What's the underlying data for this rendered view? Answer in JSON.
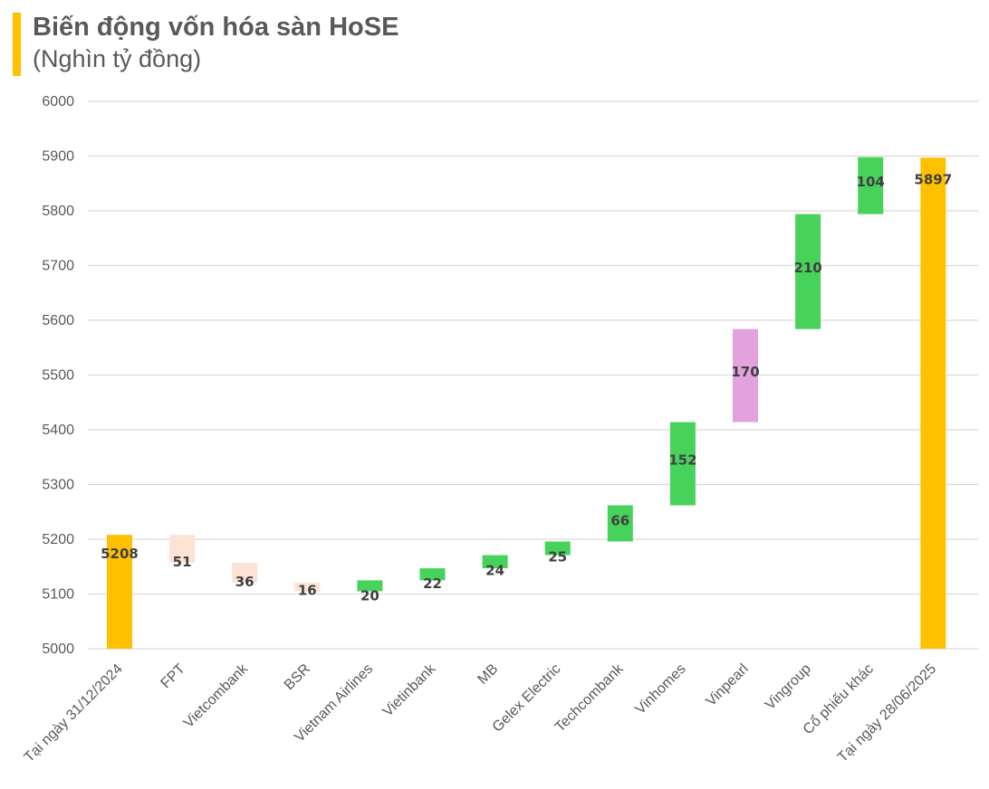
{
  "header": {
    "title": "Biến động vốn hóa sàn HoSE",
    "subtitle": "(Nghìn tỷ đồng)"
  },
  "colors": {
    "accent": "#FFC000",
    "total": "#FFC000",
    "increase": "#47D35B",
    "decrease": "#FCE3D6",
    "highlight": "#E3A2DD",
    "grid": "#D9D9D9",
    "text": "#595959"
  },
  "chart_data": {
    "type": "waterfall",
    "title": "Biến động vốn hóa sàn HoSE",
    "ylabel": "(Nghìn tỷ đồng)",
    "ylim": [
      5000,
      6000
    ],
    "yticks": [
      5000,
      5100,
      5200,
      5300,
      5400,
      5500,
      5600,
      5700,
      5800,
      5900,
      6000
    ],
    "grid": true,
    "categories": [
      "Tại ngày 31/12/2024",
      "FPT",
      "Vietcombank",
      "BSR",
      "Vietnam Airlines",
      "Vietinbank",
      "MB",
      "Gelex Electric",
      "Techcombank",
      "Vinhomes",
      "Vinpearl",
      "Vingroup",
      "Cổ phiếu khác",
      "Tại ngày 28/06/2025"
    ],
    "bars": [
      {
        "kind": "total",
        "value": 5208,
        "label": "5208"
      },
      {
        "kind": "decrease",
        "value": -51,
        "label": "51"
      },
      {
        "kind": "decrease",
        "value": -36,
        "label": "36"
      },
      {
        "kind": "decrease",
        "value": -16,
        "label": "16"
      },
      {
        "kind": "increase",
        "value": 20,
        "label": "20"
      },
      {
        "kind": "increase",
        "value": 22,
        "label": "22"
      },
      {
        "kind": "increase",
        "value": 24,
        "label": "24"
      },
      {
        "kind": "increase",
        "value": 25,
        "label": "25"
      },
      {
        "kind": "increase",
        "value": 66,
        "label": "66"
      },
      {
        "kind": "increase",
        "value": 152,
        "label": "152"
      },
      {
        "kind": "highlight",
        "value": 170,
        "label": "170"
      },
      {
        "kind": "increase",
        "value": 210,
        "label": "210"
      },
      {
        "kind": "increase",
        "value": 104,
        "label": "104"
      },
      {
        "kind": "total",
        "value": 5897,
        "label": "5897"
      }
    ]
  }
}
